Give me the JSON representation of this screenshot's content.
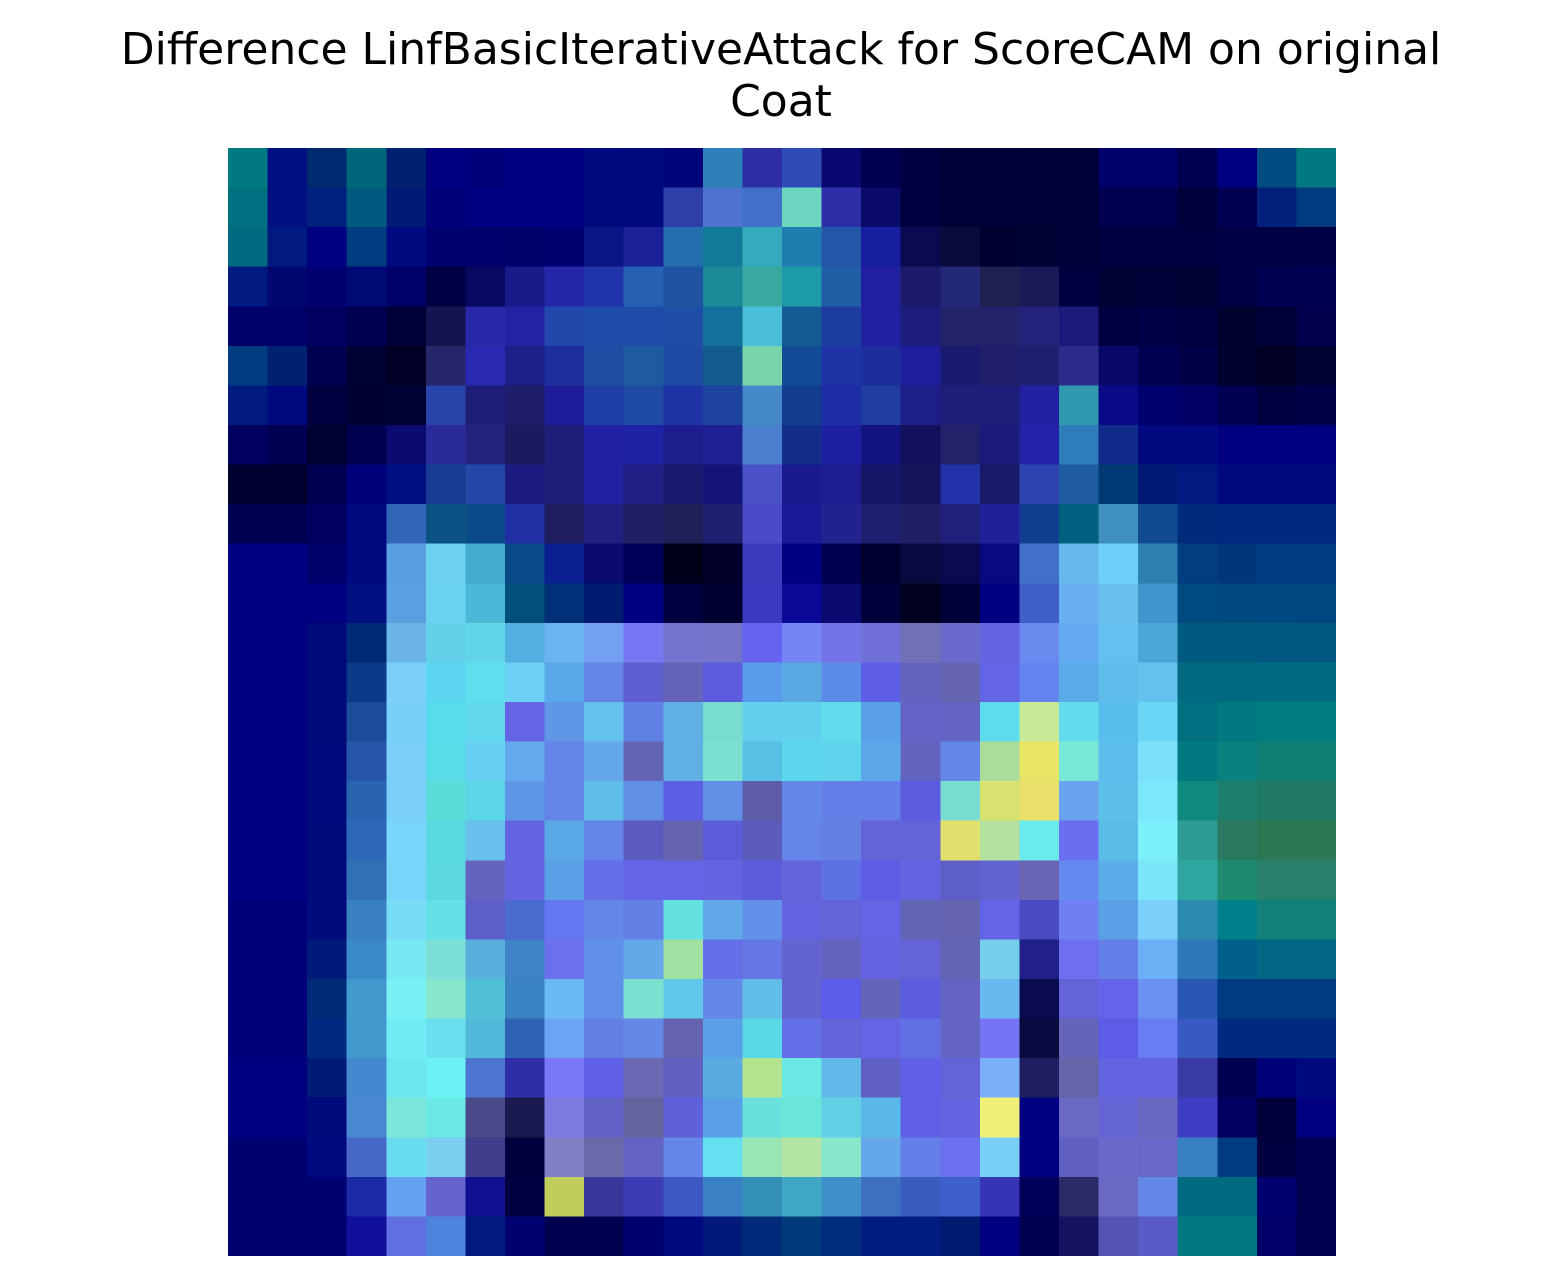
{
  "figure": {
    "title_line1": "Difference LinfBasicIterativeAttack for ScoreCAM on original",
    "title_line2": "Coat"
  },
  "image": {
    "description": "28x28 pixel overlay heatmap of a coat image (gist_earth-like colormap), no axes",
    "grid_size": 28,
    "pixels": [
      [
        "#007a80",
        "#001080",
        "#002a70",
        "#00667a",
        "#002070",
        "#000080",
        "#00007a",
        "#000080",
        "#000080",
        "#000a80",
        "#000a7c",
        "#00067a",
        "#2e80ba",
        "#2d2ea4",
        "#2e4bb6",
        "#0a0870",
        "#000050",
        "#000040",
        "#000038",
        "#000038",
        "#000036",
        "#000036",
        "#00006a",
        "#00006a",
        "#000050",
        "#000080",
        "#004c80",
        "#007a80"
      ],
      [
        "#007080",
        "#001080",
        "#002080",
        "#005a80",
        "#001a76",
        "#00007a",
        "#000080",
        "#000080",
        "#000080",
        "#000a7c",
        "#000a80",
        "#2e3fa9",
        "#4d73ce",
        "#4070c8",
        "#6cd6c0",
        "#2e2ea8",
        "#0a0a68",
        "#000040",
        "#000038",
        "#000038",
        "#000036",
        "#000038",
        "#000050",
        "#000050",
        "#00003a",
        "#000052",
        "#00207a",
        "#003a80"
      ],
      [
        "#006a80",
        "#001a80",
        "#000080",
        "#003c80",
        "#000a80",
        "#000070",
        "#00006c",
        "#00006a",
        "#000070",
        "#0a1484",
        "#1c2098",
        "#236eac",
        "#107a98",
        "#34aabc",
        "#1e7eb0",
        "#2456a8",
        "#181ea0",
        "#0a0a50",
        "#0a0a3c",
        "#000030",
        "#000034",
        "#000038",
        "#000040",
        "#000040",
        "#000040",
        "#000044",
        "#000044",
        "#000048"
      ],
      [
        "#001a80",
        "#000870",
        "#000070",
        "#000a76",
        "#00006a",
        "#000044",
        "#080860",
        "#1a1a8a",
        "#2326a8",
        "#2033aa",
        "#2660b2",
        "#1d53a0",
        "#1b8b9a",
        "#38a8a0",
        "#1c9aa8",
        "#205ea6",
        "#2020a0",
        "#1a1a68",
        "#232878",
        "#202050",
        "#1a1a58",
        "#000040",
        "#000034",
        "#000038",
        "#000034",
        "#000044",
        "#000050",
        "#000050"
      ],
      [
        "#00006a",
        "#00006a",
        "#000060",
        "#000050",
        "#000038",
        "#141450",
        "#2828a8",
        "#2222a2",
        "#2348ac",
        "#1f4ca8",
        "#1f4ca8",
        "#1e4ea8",
        "#13709a",
        "#4abed6",
        "#145a94",
        "#1d3ca0",
        "#2020a0",
        "#1d1d7c",
        "#23236c",
        "#23236c",
        "#23237c",
        "#1a1a7a",
        "#000040",
        "#000044",
        "#000040",
        "#00002e",
        "#000038",
        "#00004c"
      ],
      [
        "#003c80",
        "#002070",
        "#000050",
        "#000032",
        "#000026",
        "#26266a",
        "#2828b0",
        "#1e1e88",
        "#1e2e9c",
        "#1e4ea4",
        "#1d5aa0",
        "#1e4aa4",
        "#125c90",
        "#7ad4aa",
        "#124c98",
        "#1e33a4",
        "#1d2e9c",
        "#1e1e9c",
        "#1a1a70",
        "#1f1f6a",
        "#1f1f70",
        "#2b2b8a",
        "#080868",
        "#000050",
        "#000048",
        "#00002c",
        "#000024",
        "#000032"
      ],
      [
        "#001a80",
        "#000a80",
        "#000040",
        "#000030",
        "#000032",
        "#2944aa",
        "#1e1e76",
        "#1e1e6a",
        "#1c1c98",
        "#1d3ea4",
        "#1f4aa4",
        "#1e33a4",
        "#1e44a0",
        "#4488c8",
        "#133e90",
        "#1e2ea4",
        "#1f3ea0",
        "#1e1e88",
        "#1f1f7a",
        "#1e1e78",
        "#2020a0",
        "#3099b0",
        "#0a0a88",
        "#000070",
        "#000066",
        "#000050",
        "#000040",
        "#000048"
      ],
      [
        "#000060",
        "#000050",
        "#000032",
        "#000050",
        "#0a0a70",
        "#2a2a9a",
        "#242480",
        "#1a1a60",
        "#1e1e78",
        "#2020a4",
        "#1f22a4",
        "#1d1d8e",
        "#1e2094",
        "#4a80ce",
        "#122e88",
        "#1e20a4",
        "#141480",
        "#12125c",
        "#22226a",
        "#1a1a78",
        "#2222a8",
        "#2e7cba",
        "#102a8a",
        "#000a80",
        "#000a80",
        "#000080",
        "#000080",
        "#000080"
      ],
      [
        "#000030",
        "#000030",
        "#000050",
        "#00007a",
        "#001080",
        "#163c94",
        "#2348a8",
        "#1c1c80",
        "#1e1e78",
        "#2020a0",
        "#1e1e84",
        "#1a1a6e",
        "#141478",
        "#4a50c8",
        "#1a1a8e",
        "#1e1e90",
        "#161668",
        "#14145c",
        "#2232a8",
        "#1a1a6a",
        "#2d44b0",
        "#1e5aa0",
        "#003a74",
        "#001a76",
        "#001a80",
        "#000a80",
        "#000a80",
        "#000a80"
      ],
      [
        "#000050",
        "#000050",
        "#000060",
        "#000a80",
        "#3366b8",
        "#0a5284",
        "#0a4a88",
        "#2030a4",
        "#1e1e60",
        "#202080",
        "#1f1f66",
        "#1f1f58",
        "#1f1f70",
        "#4a4ac8",
        "#1a1a98",
        "#22228e",
        "#1f1f70",
        "#1f1f64",
        "#20207a",
        "#20209a",
        "#123e90",
        "#006080",
        "#3f8fc0",
        "#124a90",
        "#002a7a",
        "#002a80",
        "#002a80",
        "#002a80"
      ],
      [
        "#000080",
        "#000080",
        "#00006a",
        "#000a80",
        "#5a9ee0",
        "#6ed0f0",
        "#44aad0",
        "#0a4a88",
        "#0a2090",
        "#0a0a70",
        "#000058",
        "#00001a",
        "#00002a",
        "#3a3abe",
        "#000080",
        "#000050",
        "#000030",
        "#0a0a40",
        "#0a0a52",
        "#0a0a80",
        "#4070c8",
        "#66b8ea",
        "#6ed0f8",
        "#2e80b0",
        "#003e80",
        "#00367a",
        "#003a80",
        "#003a80"
      ],
      [
        "#000080",
        "#000080",
        "#000080",
        "#001080",
        "#5aa0e0",
        "#6ad4f0",
        "#4cb8d8",
        "#00507a",
        "#003078",
        "#001a70",
        "#000080",
        "#000040",
        "#000030",
        "#3a3ac0",
        "#0a0a96",
        "#0a0a70",
        "#00003a",
        "#000020",
        "#000038",
        "#000080",
        "#4060c8",
        "#6ab0f0",
        "#6ac0ec",
        "#4096cc",
        "#004c80",
        "#004a80",
        "#004880",
        "#004680"
      ],
      [
        "#000080",
        "#000080",
        "#000a78",
        "#002a78",
        "#6ab4e8",
        "#62d0e8",
        "#62d6e8",
        "#52b0e0",
        "#6ab4f0",
        "#73a0f0",
        "#7476f2",
        "#7474d0",
        "#7474ca",
        "#6464f0",
        "#7486f4",
        "#7474e8",
        "#7070d8",
        "#7070b6",
        "#6a6acc",
        "#6464e0",
        "#6a8af0",
        "#64aaf0",
        "#64c0f0",
        "#4aa8d8",
        "#005a80",
        "#005a80",
        "#005880",
        "#005880"
      ],
      [
        "#000080",
        "#000080",
        "#000a7a",
        "#0a3a88",
        "#7ad0fa",
        "#5cd6f0",
        "#5ee0f0",
        "#6cd0f6",
        "#5aa8ea",
        "#6484e8",
        "#5e5ed0",
        "#6464b8",
        "#5c5ce0",
        "#5a9aea",
        "#5aa8e2",
        "#5a8ce8",
        "#5e5ee6",
        "#6464c0",
        "#6464b0",
        "#6464e6",
        "#6484f0",
        "#5aaaea",
        "#5ebdea",
        "#64c0ec",
        "#006a80",
        "#006a80",
        "#006a80",
        "#006a80"
      ],
      [
        "#000080",
        "#000080",
        "#000a7a",
        "#1a4c9a",
        "#78d0fa",
        "#58dced",
        "#62d8ee",
        "#6464e4",
        "#6096e6",
        "#64c0ec",
        "#6080e6",
        "#60b0e6",
        "#78dcd0",
        "#62d0ec",
        "#62d0ec",
        "#62dcec",
        "#5aa0e6",
        "#6464c6",
        "#6464c4",
        "#5cdcec",
        "#c8ea98",
        "#62dcec",
        "#58bdea",
        "#6ad6f6",
        "#007080",
        "#007a80",
        "#007d80",
        "#007d80"
      ],
      [
        "#000080",
        "#000080",
        "#000a7c",
        "#2656aa",
        "#7ad0fa",
        "#58dce8",
        "#68d0f2",
        "#64a8ee",
        "#6484ea",
        "#64a8ea",
        "#6464b4",
        "#60b0e4",
        "#7ce0d0",
        "#58c0e4",
        "#5cd6ec",
        "#5ed4ec",
        "#5ca6ea",
        "#6464c0",
        "#6488e8",
        "#acdc9a",
        "#e8e466",
        "#7ae8d6",
        "#5cbeea",
        "#7ce0fa",
        "#007a80",
        "#0a8080",
        "#108074",
        "#108074"
      ],
      [
        "#000080",
        "#000080",
        "#000a7c",
        "#2864b0",
        "#7ad0fa",
        "#5adcd8",
        "#5ad6e8",
        "#6096e8",
        "#6484e8",
        "#60bce8",
        "#6090e6",
        "#5c5ee4",
        "#6090e6",
        "#5c5ca8",
        "#6488e8",
        "#6480e8",
        "#6480e8",
        "#5c5ce0",
        "#78dcd0",
        "#d8e270",
        "#e8e068",
        "#6aa4ee",
        "#5ec0ea",
        "#7ae8fa",
        "#108a80",
        "#1e7e6c",
        "#207a66",
        "#207a66"
      ],
      [
        "#000080",
        "#000080",
        "#000a7a",
        "#2c68b6",
        "#78d4fa",
        "#58d8e0",
        "#68c0ec",
        "#6464e0",
        "#5aa8e6",
        "#6484ea",
        "#5c5cc0",
        "#6464b0",
        "#5c5cd8",
        "#5c5cbc",
        "#6484ea",
        "#6480e2",
        "#6464d8",
        "#6464d8",
        "#e2e06c",
        "#b4e0a0",
        "#6aeaea",
        "#6a6ef0",
        "#5cbce8",
        "#7cf0fa",
        "#2c9c94",
        "#2a7a62",
        "#2c7854",
        "#2c7854"
      ],
      [
        "#000080",
        "#000080",
        "#000a7a",
        "#3270b6",
        "#78d4f8",
        "#5cd8e2",
        "#6464c0",
        "#6464e0",
        "#5aa0e6",
        "#6470e8",
        "#6464e6",
        "#6464e6",
        "#6464e0",
        "#5c5cda",
        "#6464da",
        "#5c70e4",
        "#5c5ce4",
        "#6464e0",
        "#5e5ec8",
        "#6464d0",
        "#6a64b4",
        "#648af0",
        "#5cacea",
        "#7ae6fa",
        "#30a6a0",
        "#1e8a70",
        "#28806a",
        "#28806a"
      ],
      [
        "#00007a",
        "#00007a",
        "#000a7a",
        "#3880c0",
        "#78dcf6",
        "#64e0e8",
        "#5e5ec8",
        "#4a6ad0",
        "#6476f0",
        "#6488e8",
        "#6480e6",
        "#64e0e0",
        "#60a8e8",
        "#6090e8",
        "#6464e0",
        "#6464d8",
        "#6464e4",
        "#6464b4",
        "#6464b0",
        "#6464e8",
        "#4a4ac4",
        "#6e80f4",
        "#5aa0e6",
        "#7ad0fa",
        "#2c8ab0",
        "#00808a",
        "#108078",
        "#108078"
      ],
      [
        "#00007a",
        "#00007a",
        "#001a7a",
        "#3a88c8",
        "#78e8f4",
        "#7ce0d8",
        "#5ab0dc",
        "#3e82c8",
        "#6c70ec",
        "#6090e8",
        "#64a8e8",
        "#a0e0a0",
        "#6470e8",
        "#6476e4",
        "#6464d0",
        "#6464c0",
        "#6464e0",
        "#6464d8",
        "#6464b4",
        "#74ceec",
        "#202088",
        "#6e6ef0",
        "#6480e8",
        "#6ab0f4",
        "#2c78b8",
        "#00608a",
        "#006684",
        "#006684"
      ],
      [
        "#00007a",
        "#00007a",
        "#002a78",
        "#4098cc",
        "#78f0f4",
        "#88e6cc",
        "#50c0d8",
        "#3a84c4",
        "#6ab8f4",
        "#6090e8",
        "#7ce0d0",
        "#60c8e8",
        "#6488e8",
        "#60bce8",
        "#6464d0",
        "#5c5cea",
        "#6464b8",
        "#5c5ce0",
        "#6464c4",
        "#6ab8f0",
        "#0a0a50",
        "#6464d8",
        "#6464ea",
        "#6a90f2",
        "#2858b4",
        "#003a80",
        "#003a80",
        "#003a80"
      ],
      [
        "#00007a",
        "#00007a",
        "#002a80",
        "#4098cc",
        "#70ecf4",
        "#6ae0ee",
        "#50b8d8",
        "#2e62b4",
        "#6aa4f2",
        "#6480e4",
        "#6488e6",
        "#6464b0",
        "#5aa0e6",
        "#5ad8e6",
        "#6470e8",
        "#6464da",
        "#6464e4",
        "#6070e4",
        "#6464c4",
        "#7474f4",
        "#0a0a40",
        "#6464b8",
        "#5c5ce6",
        "#6a7cf2",
        "#3858c2",
        "#002a80",
        "#002a80",
        "#002a80"
      ],
      [
        "#000080",
        "#000080",
        "#001a78",
        "#4488d0",
        "#6ce6f0",
        "#6cf2f4",
        "#4c76d0",
        "#2e2ea8",
        "#7a7af8",
        "#6060e8",
        "#6a6ab4",
        "#6060c0",
        "#5aaae2",
        "#b4e490",
        "#6ae8e4",
        "#62b8e8",
        "#6060c4",
        "#6060e8",
        "#6464d8",
        "#7ab0f8",
        "#1e1e60",
        "#6464a8",
        "#6464e0",
        "#6464e0",
        "#3a3aa4",
        "#000050",
        "#00007a",
        "#000a80"
      ],
      [
        "#000080",
        "#000080",
        "#000a7a",
        "#4888d0",
        "#7ce6da",
        "#6ae8e4",
        "#4a4a8a",
        "#1a1a50",
        "#7a7ae0",
        "#6262c6",
        "#64649e",
        "#6060da",
        "#5aa0e6",
        "#6ae0dc",
        "#6ae6d8",
        "#62d0e4",
        "#5ab8e8",
        "#6060e6",
        "#6464e0",
        "#f0f078",
        "#000080",
        "#6a6ac4",
        "#6464d4",
        "#6868c0",
        "#3e3ec4",
        "#000060",
        "#00003a",
        "#000080"
      ],
      [
        "#000070",
        "#000070",
        "#000a80",
        "#4868c8",
        "#6adcf0",
        "#7acef0",
        "#3e3e8a",
        "#00003e",
        "#8080c4",
        "#6a6aaa",
        "#6464c4",
        "#6486e8",
        "#64e0f0",
        "#98e6b4",
        "#b4e4a4",
        "#88e8cc",
        "#64a8ea",
        "#6480e8",
        "#6a70f0",
        "#78d0f8",
        "#000080",
        "#6060c0",
        "#6a6aca",
        "#6868c8",
        "#3880c4",
        "#003a80",
        "#000040",
        "#000050"
      ],
      [
        "#000070",
        "#000070",
        "#000070",
        "#1a2aa4",
        "#64a0f0",
        "#6464cc",
        "#101090",
        "#000040",
        "#c0cc5c",
        "#38389a",
        "#3c3cb4",
        "#3e58c4",
        "#3a80c4",
        "#3590b8",
        "#40a8c4",
        "#3e90c8",
        "#3e70c0",
        "#385cc0",
        "#3e60cc",
        "#3434b4",
        "#000058",
        "#2a2a68",
        "#6a6ac4",
        "#6488e8",
        "#006a80",
        "#006a80",
        "#000070",
        "#000050"
      ],
      [
        "#000070",
        "#000070",
        "#000070",
        "#10109a",
        "#6070e0",
        "#4c84e0",
        "#001a80",
        "#000070",
        "#000050",
        "#000050",
        "#000070",
        "#000a80",
        "#001a7a",
        "#002a7a",
        "#003a7a",
        "#002c7c",
        "#001c80",
        "#001c80",
        "#001a70",
        "#000080",
        "#000050",
        "#141460",
        "#5454b4",
        "#5a5ac8",
        "#007a80",
        "#007a80",
        "#000068",
        "#000050"
      ]
    ]
  }
}
